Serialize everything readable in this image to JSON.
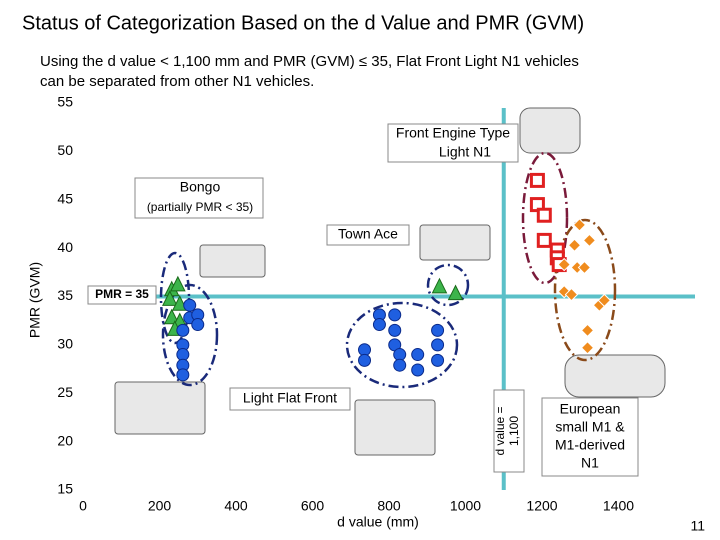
{
  "title": "Status of Categorization Based on the d Value and PMR (GVM)",
  "page_number": "11",
  "chart_data": {
    "type": "scatter",
    "subtitle": [
      "Using the d value < 1,100 mm and PMR (GVM) ≤ 35, Flat Front Light N1 vehicles",
      "can be separated from other N1 vehicles."
    ],
    "xlabel": "d value (mm)",
    "ylabel": "PMR (GVM)",
    "xlim": [
      0,
      1600
    ],
    "ylim": [
      15,
      55
    ],
    "xticks": [
      0,
      200,
      400,
      600,
      800,
      1000,
      1200,
      1400
    ],
    "yticks": [
      15,
      20,
      25,
      30,
      35,
      40,
      45,
      50,
      55
    ],
    "vline": 1100,
    "hline": 35,
    "series": [
      {
        "color": "#3cb44b",
        "marker": "triangle",
        "x": [
          232,
          248,
          227,
          253,
          232,
          253,
          240,
          932,
          974
        ],
        "values": [
          35.7,
          36.2,
          34.7,
          34.2,
          32.8,
          32.4,
          31.6,
          36.0,
          35.3
        ]
      },
      {
        "color": "#1f5fe0",
        "marker": "circle",
        "x": [
          279,
          279,
          261,
          300,
          300,
          261,
          261,
          261,
          261,
          736,
          736,
          775,
          775,
          815,
          815,
          815,
          828,
          828,
          875,
          875,
          927,
          927,
          927
        ],
        "values": [
          34.1,
          32.8,
          31.5,
          33.1,
          32.1,
          30.0,
          29.0,
          27.9,
          26.9,
          29.5,
          28.4,
          33.1,
          32.1,
          33.1,
          31.5,
          30.0,
          29.0,
          27.9,
          29.0,
          27.4,
          31.5,
          30.0,
          28.4
        ]
      },
      {
        "color": "#e02020",
        "marker": "square",
        "x": [
          1188,
          1188,
          1206,
          1206,
          1240,
          1240,
          1245
        ],
        "values": [
          47.0,
          44.5,
          43.4,
          40.8,
          39.8,
          39.0,
          38.3
        ]
      },
      {
        "color": "#f08c1e",
        "marker": "diamond",
        "x": [
          1298,
          1324,
          1285,
          1258,
          1292,
          1311,
          1258,
          1277,
          1350,
          1363,
          1319,
          1319
        ],
        "values": [
          42.4,
          40.8,
          40.3,
          38.3,
          38.0,
          38.0,
          35.5,
          35.2,
          34.1,
          34.6,
          31.5,
          29.7
        ]
      }
    ],
    "annotations": {
      "front_engine": [
        "Front Engine Type",
        "Light N1"
      ],
      "bongo": "Bongo",
      "bongo_note": "(partially PMR < 35)",
      "town_ace": "Town Ace",
      "pmr_line": "PMR = 35",
      "light_flat_front": "Light Flat Front",
      "d_line": [
        "d value =",
        "1,100"
      ],
      "european": [
        "European",
        "small M1 &",
        "M1-derived",
        "N1"
      ]
    }
  }
}
